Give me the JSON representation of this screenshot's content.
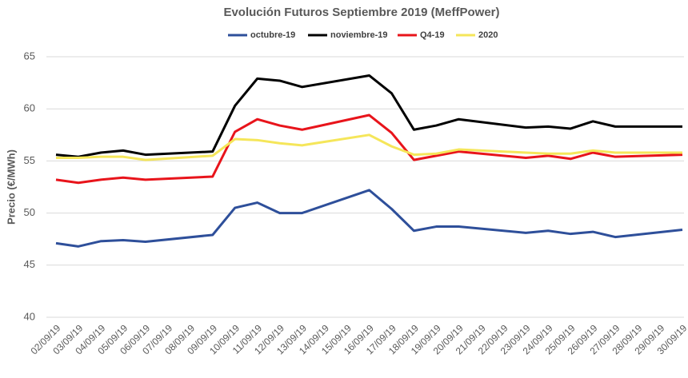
{
  "chart_data": {
    "type": "line",
    "title": "Evolución Futuros Septiembre 2019 (MeffPower)",
    "y_label": "Precio (€/MWh)",
    "categories": [
      "02/09/19",
      "03/09/19",
      "04/09/19",
      "05/09/19",
      "06/09/19",
      "07/09/19",
      "08/09/19",
      "09/09/19",
      "10/09/19",
      "11/09/19",
      "12/09/19",
      "13/09/19",
      "14/09/19",
      "15/09/19",
      "16/09/19",
      "17/09/19",
      "18/09/19",
      "19/09/19",
      "20/09/19",
      "21/09/19",
      "22/09/19",
      "23/09/19",
      "24/09/19",
      "25/09/19",
      "26/09/19",
      "27/09/19",
      "28/09/19",
      "29/09/19",
      "30/09/19"
    ],
    "series": [
      {
        "name": "octubre-19",
        "color": "#2e4f9a",
        "values": [
          47.1,
          46.8,
          47.3,
          47.4,
          47.25,
          null,
          null,
          47.9,
          50.5,
          51.0,
          50.0,
          50.0,
          null,
          null,
          52.2,
          50.4,
          48.3,
          48.7,
          48.7,
          null,
          null,
          48.1,
          48.3,
          48.0,
          48.2,
          47.7,
          null,
          null,
          48.4
        ]
      },
      {
        "name": "noviembre-19",
        "color": "#000000",
        "values": [
          55.6,
          55.4,
          55.8,
          56.0,
          55.6,
          null,
          null,
          55.9,
          60.3,
          62.9,
          62.7,
          62.1,
          null,
          null,
          63.2,
          61.5,
          58.0,
          58.4,
          59.0,
          null,
          null,
          58.2,
          58.3,
          58.1,
          58.8,
          58.3,
          null,
          null,
          58.3
        ]
      },
      {
        "name": "Q4-19",
        "color": "#e8141b",
        "values": [
          53.2,
          52.9,
          53.2,
          53.4,
          53.2,
          null,
          null,
          53.5,
          57.8,
          59.0,
          58.4,
          58.0,
          null,
          null,
          59.4,
          57.7,
          55.1,
          55.5,
          55.9,
          null,
          null,
          55.3,
          55.5,
          55.2,
          55.8,
          55.4,
          null,
          null,
          55.6
        ]
      },
      {
        "name": "2020",
        "color": "#f5e65a",
        "values": [
          55.3,
          55.3,
          55.4,
          55.4,
          55.1,
          null,
          null,
          55.5,
          57.1,
          57.0,
          56.7,
          56.5,
          null,
          null,
          57.5,
          56.4,
          55.6,
          55.7,
          56.1,
          null,
          null,
          55.8,
          55.7,
          55.7,
          56.0,
          55.8,
          null,
          null,
          55.8
        ]
      }
    ],
    "connect_gaps": true,
    "ylim": [
      40,
      65
    ],
    "yticks": [
      40,
      45,
      50,
      55,
      60,
      65
    ],
    "grid": true,
    "legend": "top"
  }
}
